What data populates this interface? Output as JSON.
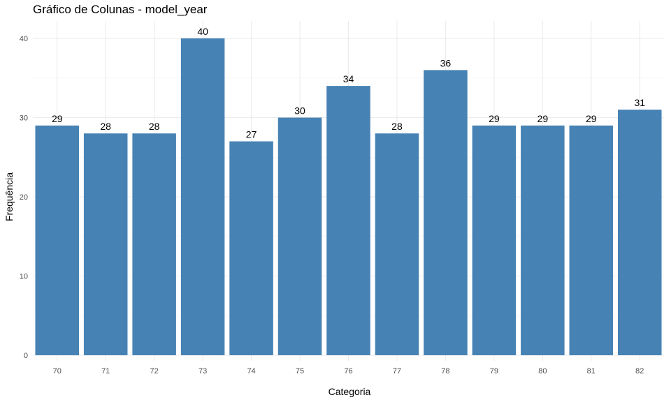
{
  "chart_data": {
    "type": "bar",
    "title": "Gráfico de Colunas - model_year",
    "xlabel": "Categoria",
    "ylabel": "Frequência",
    "categories": [
      "70",
      "71",
      "72",
      "73",
      "74",
      "75",
      "76",
      "77",
      "78",
      "79",
      "80",
      "81",
      "82"
    ],
    "values": [
      29,
      28,
      28,
      40,
      27,
      30,
      34,
      28,
      36,
      29,
      29,
      29,
      31
    ],
    "ylim": [
      0,
      42
    ],
    "yticks": [
      0,
      10,
      20,
      30,
      40
    ],
    "bar_color": "#4682B4",
    "grid": true,
    "legend": "none"
  }
}
